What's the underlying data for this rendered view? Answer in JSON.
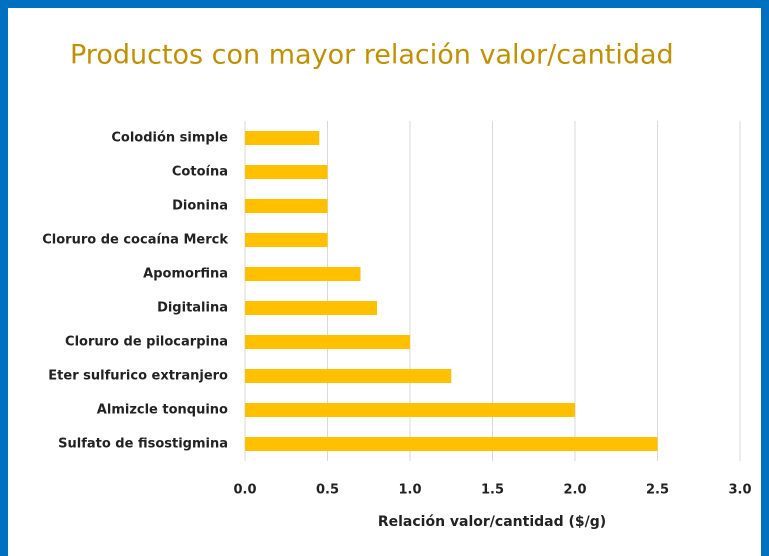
{
  "chart_data": {
    "type": "bar",
    "orientation": "horizontal",
    "title": "Productos con mayor relación valor/cantidad",
    "xlabel": "Relación valor/cantidad ($/g)",
    "categories": [
      "Colodión simple",
      "Cotoína",
      "Dionina",
      "Cloruro de cocaína Merck",
      "Apomorfina",
      "Digitalina",
      "Cloruro de pilocarpina",
      "Eter sulfurico extranjero",
      "Almizcle tonquino",
      "Sulfato de fisostigmina"
    ],
    "values": [
      0.45,
      0.5,
      0.5,
      0.5,
      0.7,
      0.8,
      1.0,
      1.25,
      2.0,
      2.5
    ],
    "color": "#ffc000",
    "xlim": [
      0,
      3
    ],
    "xticks": [
      {
        "value": 0,
        "label": "0.0"
      },
      0.5,
      {
        "value": 1,
        "label": "1.0"
      },
      1.5,
      {
        "value": 2,
        "label": "2.0"
      },
      2.5,
      {
        "value": 3,
        "label": "3.0"
      }
    ],
    "grid": true
  }
}
